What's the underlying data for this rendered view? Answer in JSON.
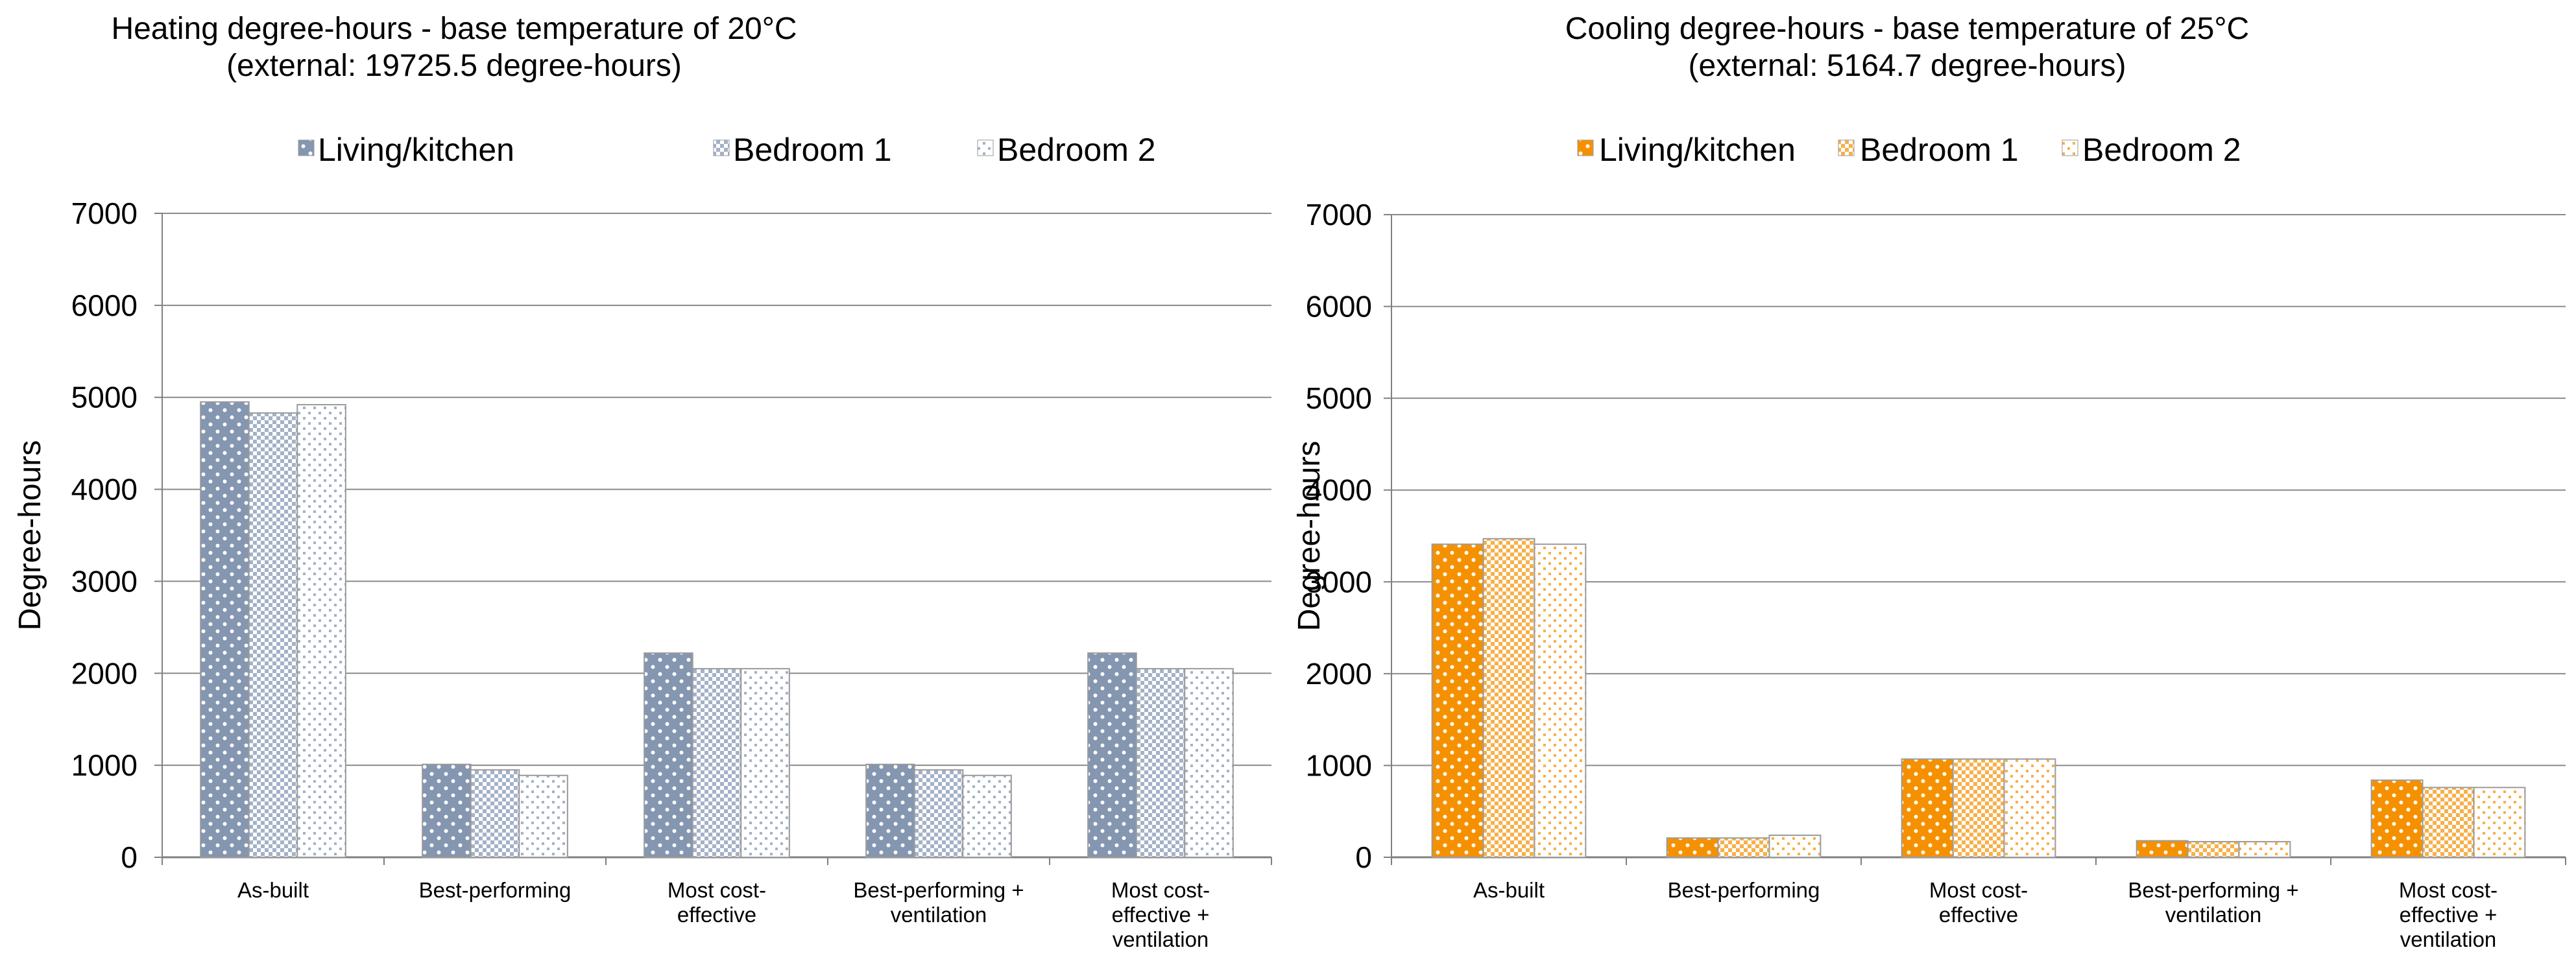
{
  "chart_data": [
    {
      "type": "bar",
      "title_lines": [
        "Heating degree-hours - base temperature of 20°C",
        "(external: 19725.5 degree-hours)"
      ],
      "ylabel": "Degree-hours",
      "xlabel": "",
      "ylim": [
        0,
        7000
      ],
      "yticks": [
        0,
        1000,
        2000,
        3000,
        4000,
        5000,
        6000,
        7000
      ],
      "grid": true,
      "legend_position": "top-center",
      "categories": [
        [
          "As-built"
        ],
        [
          "Best-performing"
        ],
        [
          "Most cost-",
          "effective"
        ],
        [
          "Best-performing +",
          "ventilation"
        ],
        [
          "Most cost-",
          "effective +",
          "ventilation"
        ]
      ],
      "colors": {
        "primary": "#8496B0",
        "secondary": "#A4B2C8"
      },
      "series": [
        {
          "name": "Living/kitchen",
          "pattern": "solid-dots",
          "values": [
            4950,
            1010,
            2220,
            1010,
            2220
          ]
        },
        {
          "name": "Bedroom 1",
          "pattern": "checker",
          "values": [
            4830,
            950,
            2050,
            950,
            2050
          ]
        },
        {
          "name": "Bedroom 2",
          "pattern": "light-dots",
          "values": [
            4920,
            890,
            2050,
            890,
            2050
          ]
        }
      ]
    },
    {
      "type": "bar",
      "title_lines": [
        "Cooling degree-hours - base temperature of 25°C",
        "(external: 5164.7 degree-hours)"
      ],
      "ylabel": "Degree-hours",
      "xlabel": "",
      "ylim": [
        0,
        7000
      ],
      "yticks": [
        0,
        1000,
        2000,
        3000,
        4000,
        5000,
        6000,
        7000
      ],
      "grid": true,
      "legend_position": "top-center",
      "categories": [
        [
          "As-built"
        ],
        [
          "Best-performing"
        ],
        [
          "Most cost-",
          "effective"
        ],
        [
          "Best-performing +",
          "ventilation"
        ],
        [
          "Most cost-",
          "effective +",
          "ventilation"
        ]
      ],
      "colors": {
        "primary": "#F59100",
        "secondary": "#F7B04A"
      },
      "series": [
        {
          "name": "Living/kitchen",
          "pattern": "solid-dots",
          "values": [
            3410,
            210,
            1070,
            180,
            840
          ]
        },
        {
          "name": "Bedroom 1",
          "pattern": "checker",
          "values": [
            3470,
            210,
            1070,
            170,
            760
          ]
        },
        {
          "name": "Bedroom 2",
          "pattern": "light-dots",
          "values": [
            3410,
            240,
            1070,
            170,
            760
          ]
        }
      ]
    }
  ]
}
